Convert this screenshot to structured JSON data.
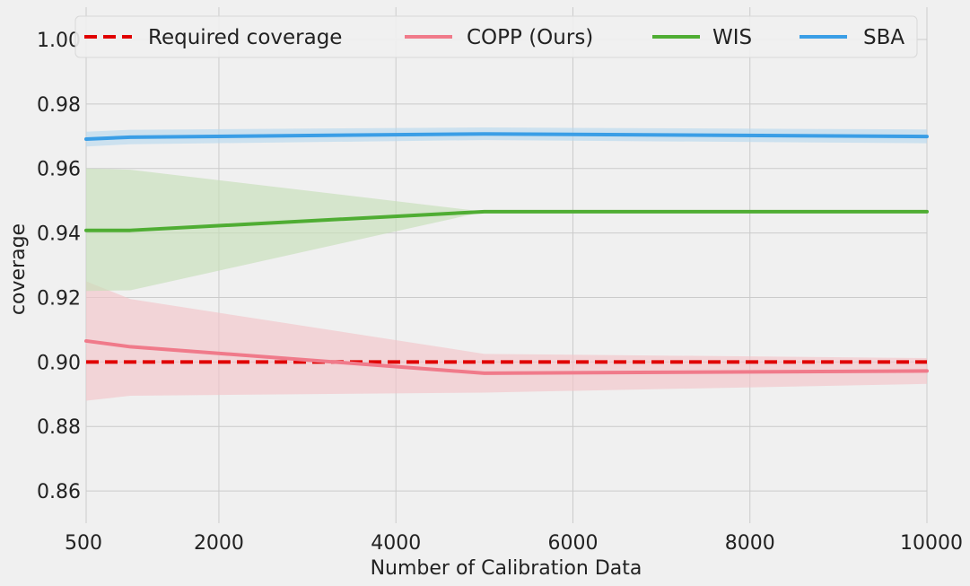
{
  "chart_data": {
    "type": "line",
    "xlabel": "Number of Calibration Data",
    "ylabel": "coverage",
    "xlim": [
      500,
      10000
    ],
    "ylim": [
      0.85,
      1.01
    ],
    "xticks": [
      500,
      2000,
      4000,
      6000,
      8000,
      10000
    ],
    "xtick_labels": [
      "500",
      "2000",
      "4000",
      "6000",
      "8000",
      "10000"
    ],
    "yticks": [
      0.86,
      0.88,
      0.9,
      0.92,
      0.94,
      0.96,
      0.98,
      1.0
    ],
    "ytick_labels": [
      "0.86",
      "0.88",
      "0.90",
      "0.92",
      "0.94",
      "0.96",
      "0.98",
      "1.00"
    ],
    "grid": true,
    "legend_position": "top",
    "required_coverage": {
      "name": "Required coverage",
      "value": 0.9,
      "color": "#e00000",
      "style": "dashed"
    },
    "series": [
      {
        "name": "COPP (Ours)",
        "color": "#f07a8a",
        "band_color": "#f2c4ca",
        "x": [
          500,
          1000,
          5000,
          10000
        ],
        "values": [
          0.9065,
          0.9047,
          0.8965,
          0.8972
        ],
        "lower": [
          0.888,
          0.8895,
          0.8905,
          0.8932
        ],
        "upper": [
          0.925,
          0.9195,
          0.9025,
          0.9012
        ]
      },
      {
        "name": "WIS",
        "color": "#4fad33",
        "band_color": "#c6dfb8",
        "x": [
          500,
          1000,
          5000,
          10000
        ],
        "values": [
          0.9408,
          0.9408,
          0.9466,
          0.9466
        ],
        "lower": [
          0.922,
          0.9222,
          0.9466,
          0.9466
        ],
        "upper": [
          0.96,
          0.9596,
          0.9466,
          0.9466
        ]
      },
      {
        "name": "SBA",
        "color": "#3a9ee6",
        "band_color": "#b9d8ee",
        "x": [
          500,
          1000,
          5000,
          10000
        ],
        "values": [
          0.9691,
          0.9697,
          0.9707,
          0.9699
        ],
        "lower": [
          0.9668,
          0.9675,
          0.9688,
          0.9678
        ],
        "upper": [
          0.9714,
          0.972,
          0.9727,
          0.9721
        ]
      }
    ]
  }
}
